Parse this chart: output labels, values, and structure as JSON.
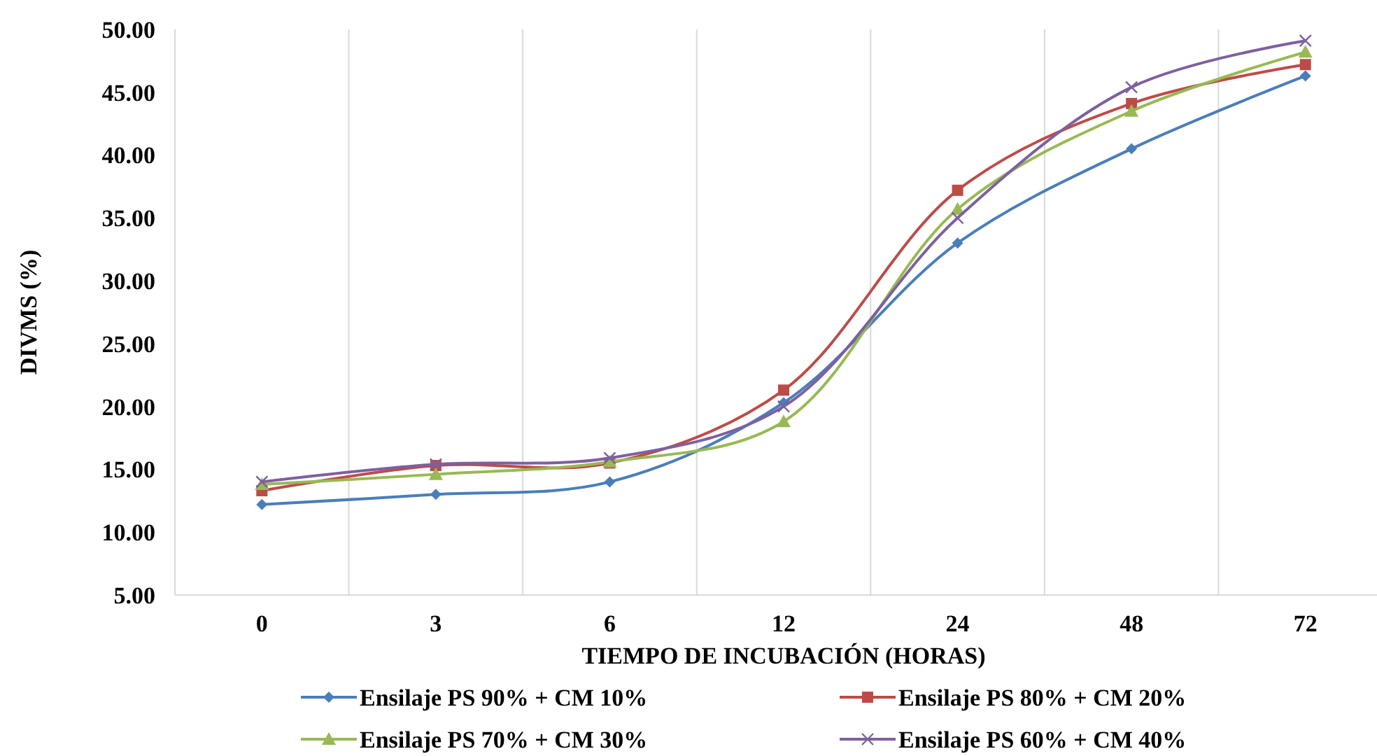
{
  "chart_data": {
    "type": "line",
    "xlabel": "TIEMPO DE INCUBACIÓN (HORAS)",
    "ylabel": "DIVMS (%)",
    "categories": [
      "0",
      "3",
      "6",
      "12",
      "24",
      "48",
      "72"
    ],
    "ylim": [
      5,
      50
    ],
    "yticks": [
      {
        "value": 5,
        "label": "5.00"
      },
      {
        "value": 10,
        "label": "10.00"
      },
      {
        "value": 15,
        "label": "15.00"
      },
      {
        "value": 20,
        "label": "20.00"
      },
      {
        "value": 25,
        "label": "25.00"
      },
      {
        "value": 30,
        "label": "30.00"
      },
      {
        "value": 35,
        "label": "35.00"
      },
      {
        "value": 40,
        "label": "40.00"
      },
      {
        "value": 45,
        "label": "45.00"
      },
      {
        "value": 50,
        "label": "50.00"
      }
    ],
    "grid": "x",
    "legend": "bottom",
    "line_style": "solid",
    "series": [
      {
        "name": "Ensilaje PS 90% + CM 10%",
        "color": "#4a7ebb",
        "marker": "diamond",
        "values": [
          12.2,
          13.0,
          14.0,
          20.3,
          33.0,
          40.5,
          46.3
        ]
      },
      {
        "name": "Ensilaje PS 80% + CM 20%",
        "color": "#be4b48",
        "marker": "square",
        "values": [
          13.3,
          15.3,
          15.5,
          21.3,
          37.2,
          44.1,
          47.2
        ]
      },
      {
        "name": "Ensilaje PS 70% + CM 30%",
        "color": "#98b954",
        "marker": "triangle",
        "values": [
          13.8,
          14.6,
          15.6,
          18.8,
          35.7,
          43.5,
          48.2
        ]
      },
      {
        "name": "Ensilaje PS 60% + CM 40%",
        "color": "#7d60a0",
        "marker": "cross",
        "values": [
          14.0,
          15.4,
          15.9,
          20.0,
          35.0,
          45.4,
          49.1
        ]
      }
    ]
  }
}
